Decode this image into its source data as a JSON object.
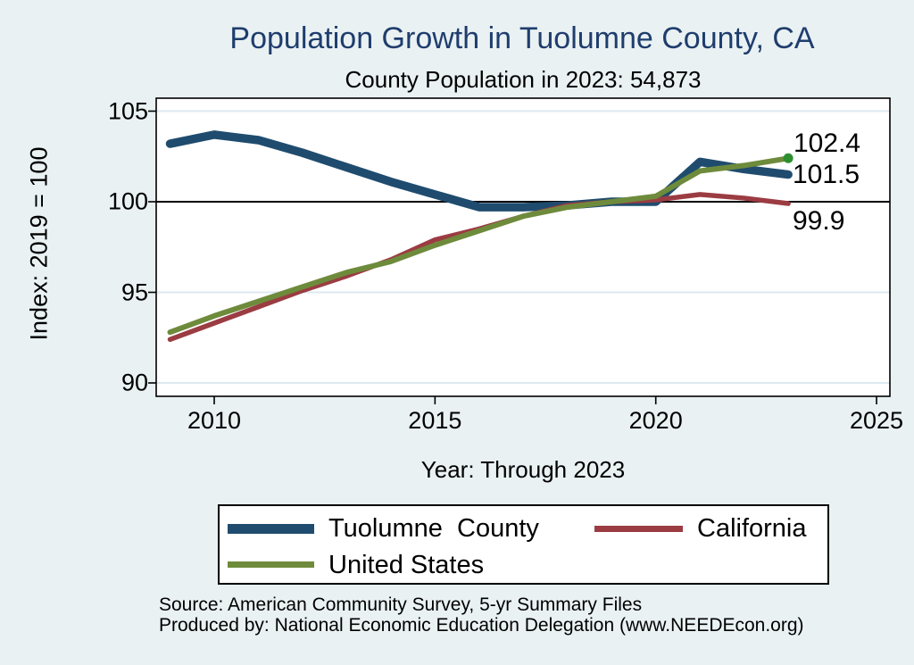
{
  "chart_data": {
    "type": "line",
    "title": "Population Growth in Tuolumne County, CA",
    "subtitle": "County Population in 2023: 54,873",
    "xlabel": "Year: Through 2023",
    "ylabel": "Index: 2019 = 100",
    "x": [
      2009,
      2010,
      2011,
      2012,
      2013,
      2014,
      2015,
      2016,
      2017,
      2018,
      2019,
      2020,
      2021,
      2022,
      2023
    ],
    "series": [
      {
        "name": "Tuolumne  County",
        "color": "#1f4c6e",
        "values": [
          103.2,
          103.7,
          103.4,
          102.7,
          101.9,
          101.1,
          100.4,
          99.7,
          99.7,
          99.8,
          100.0,
          100.0,
          102.2,
          101.8,
          101.5
        ]
      },
      {
        "name": "California",
        "color": "#9b3c42",
        "values": [
          92.4,
          93.3,
          94.2,
          95.1,
          95.9,
          96.8,
          97.9,
          98.5,
          99.2,
          99.8,
          100.0,
          100.1,
          100.4,
          100.2,
          99.9
        ]
      },
      {
        "name": "United States",
        "color": "#6e8b3c",
        "end_marker": true,
        "end_marker_color": "#2e8f2e",
        "values": [
          92.8,
          93.7,
          94.5,
          95.3,
          96.1,
          96.7,
          97.6,
          98.4,
          99.2,
          99.7,
          100.0,
          100.3,
          101.7,
          102.0,
          102.4
        ]
      }
    ],
    "end_labels": [
      "102.4",
      "101.5",
      "99.9"
    ],
    "y_ticks": [
      105,
      100,
      95,
      90
    ],
    "y_tick_labels": [
      "105",
      "100",
      "95",
      "90"
    ],
    "x_ticks": [
      2010,
      2015,
      2020,
      2025
    ],
    "x_tick_labels": [
      "2010",
      "2015",
      "2020",
      "2025"
    ],
    "reference_line": 100,
    "ylim": [
      89.3,
      105.7
    ],
    "xlim": [
      2008.7,
      2025.3
    ],
    "grid": true,
    "legend_position": "bottom",
    "colors": {
      "background": "#e9f1f3",
      "plot_background": "#ffffff",
      "gridline": "#dde9f1",
      "axis": "#000000",
      "title": "#1f3d6d"
    }
  },
  "source": {
    "line1": "Source: American Community Survey, 5-yr Summary Files",
    "line2": "Produced by: National Economic Education Delegation (www.NEEDEcon.org)"
  }
}
